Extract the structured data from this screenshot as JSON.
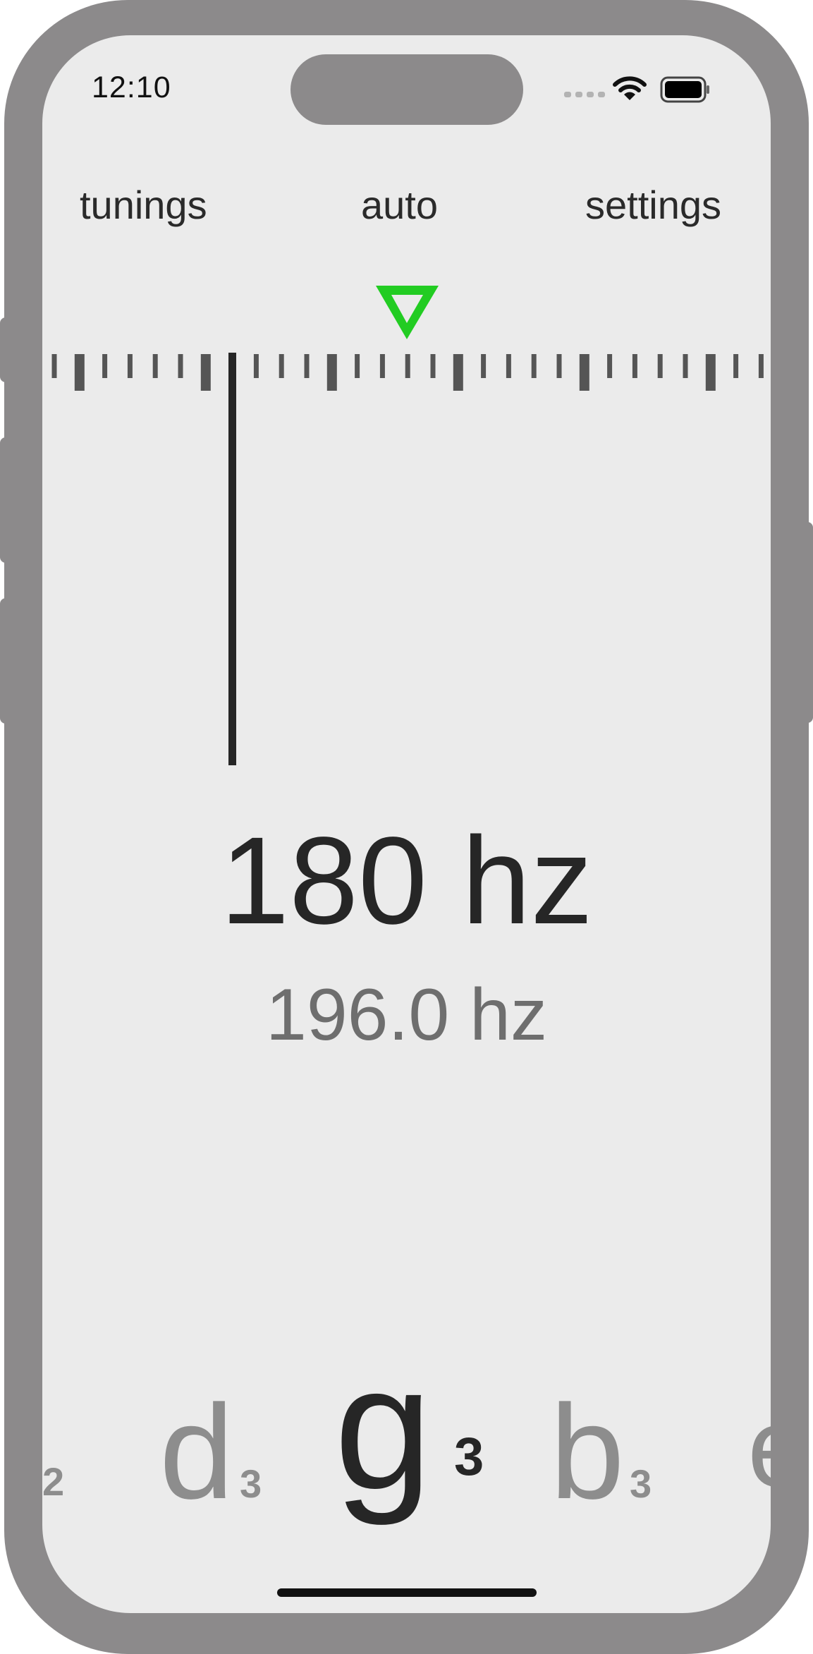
{
  "status_bar": {
    "time": "12:10",
    "icons": [
      "signal-icon",
      "wifi-icon",
      "battery-icon"
    ]
  },
  "nav": {
    "tunings": "tunings",
    "mode": "auto",
    "settings": "settings"
  },
  "tuner": {
    "indicator_color": "#22cc22",
    "detected_frequency": "180 hz",
    "target_frequency": "196.0 hz"
  },
  "notes": [
    {
      "letter": "",
      "octave": "2",
      "state": "neighbor"
    },
    {
      "letter": "d",
      "octave": "3",
      "state": "neighbor"
    },
    {
      "letter": "g",
      "octave": "3",
      "state": "selected"
    },
    {
      "letter": "b",
      "octave": "3",
      "state": "neighbor"
    },
    {
      "letter": "e",
      "octave": "",
      "state": "neighbor"
    }
  ]
}
